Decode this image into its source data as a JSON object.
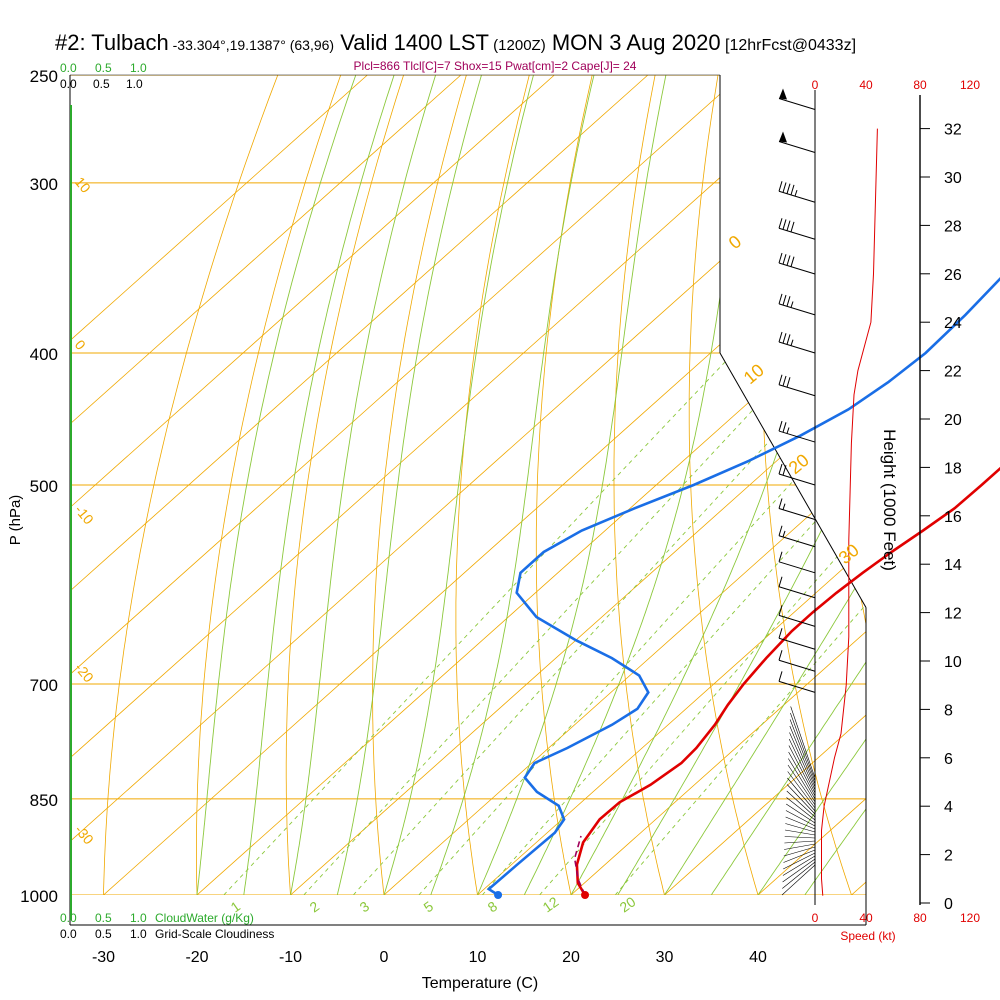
{
  "header": {
    "station": "#2: Tulbach",
    "coords": "-33.304°,19.1387° (63,96)",
    "valid": "Valid 1400 LST",
    "utc": "(1200Z)",
    "date": "MON 3 Aug 2020",
    "fcst": "[12hrFcst@0433z]"
  },
  "indices": "Plcl=866 Tlcl[C]=7 Shox=15 Pwat[cm]=2 Cape[J]= 24",
  "scale_labels": {
    "cloudwater_ticks": [
      "0.0",
      "0.5",
      "1.0"
    ],
    "cloudiness_ticks": [
      "0.0",
      "0.5",
      "1.0"
    ],
    "cloudwater_title": "CloudWater (g/Kg)",
    "cloudiness_title": "Grid-Scale Cloudiness",
    "speed_ticks": [
      "0",
      "40",
      "80",
      "120"
    ],
    "speed_title": "Speed (kt)"
  },
  "chart_data": {
    "type": "line",
    "title": "Skew-T log-P sounding",
    "xlabel": "Temperature (C)",
    "ylabel": "P (hPa)",
    "y2label": "Height (1000 Feet)",
    "x_ticks": [
      -30,
      -20,
      -10,
      0,
      10,
      20,
      30,
      40
    ],
    "p_ticks": [
      250,
      300,
      400,
      500,
      700,
      850,
      1000
    ],
    "height_ticks": [
      0,
      2,
      4,
      6,
      8,
      10,
      12,
      14,
      16,
      18,
      20,
      22,
      24,
      26,
      28,
      30,
      32
    ],
    "mixing_ratio_labels": [
      "1",
      "2",
      "3",
      "5",
      "8",
      "12",
      "20"
    ],
    "isotherm_labels": [
      "10",
      "0",
      "-10",
      "-20",
      "-30"
    ],
    "moist_adiabat_labels": [
      "0",
      "10",
      "20",
      "30"
    ],
    "colors": {
      "temperature": "#e00000",
      "dewpoint": "#1a6ee6",
      "isotherm": "#f0a800",
      "dry_adiabat": "#f0a800",
      "moist_adiabat": "#8cc83c",
      "mixing_ratio": "#8cc83c",
      "parcel": "#a0005a",
      "wind_speed": "#e00000"
    },
    "series": [
      {
        "name": "temperature",
        "points": [
          [
            21.5,
            1000
          ],
          [
            19.3,
            980
          ],
          [
            17,
            950
          ],
          [
            15,
            915
          ],
          [
            14,
            880
          ],
          [
            14.1,
            855
          ],
          [
            15.3,
            830
          ],
          [
            16,
            800
          ],
          [
            15.8,
            780
          ],
          [
            15,
            750
          ],
          [
            14,
            725
          ],
          [
            13.2,
            700
          ],
          [
            12.5,
            670
          ],
          [
            12,
            640
          ],
          [
            12,
            620
          ],
          [
            12.2,
            600
          ],
          [
            12.6,
            580
          ],
          [
            13.2,
            560
          ],
          [
            14,
            540
          ],
          [
            14.7,
            520
          ],
          [
            14.8,
            500
          ],
          [
            14.8,
            485
          ],
          [
            15,
            470
          ],
          [
            14.6,
            455
          ],
          [
            13.6,
            430
          ],
          [
            12,
            400
          ],
          [
            10.5,
            375
          ],
          [
            9,
            350
          ],
          [
            7.5,
            330
          ],
          [
            6.5,
            315
          ],
          [
            5.5,
            300
          ],
          [
            4.5,
            290
          ],
          [
            3.3,
            280
          ],
          [
            2.5,
            270
          ]
        ]
      },
      {
        "name": "dewpoint",
        "points": [
          [
            12.2,
            1000
          ],
          [
            10.5,
            990
          ],
          [
            10.6,
            950
          ],
          [
            10.8,
            900
          ],
          [
            10.2,
            880
          ],
          [
            8,
            860
          ],
          [
            4,
            840
          ],
          [
            1,
            820
          ],
          [
            0.3,
            800
          ],
          [
            2,
            780
          ],
          [
            4,
            750
          ],
          [
            4.8,
            730
          ],
          [
            4,
            710
          ],
          [
            1,
            690
          ],
          [
            -4,
            670
          ],
          [
            -10,
            650
          ],
          [
            -17,
            625
          ],
          [
            -22,
            600
          ],
          [
            -24,
            580
          ],
          [
            -24,
            560
          ],
          [
            -22.5,
            540
          ],
          [
            -19.5,
            520
          ],
          [
            -16,
            500
          ],
          [
            -13,
            480
          ],
          [
            -10.5,
            460
          ],
          [
            -8.5,
            440
          ],
          [
            -7.5,
            420
          ],
          [
            -7,
            400
          ],
          [
            -7.3,
            375
          ],
          [
            -8,
            350
          ],
          [
            -8.7,
            325
          ],
          [
            -9.5,
            300
          ],
          [
            -9.6,
            285
          ],
          [
            -9.5,
            270
          ]
        ]
      },
      {
        "name": "parcel",
        "points": [
          [
            21.5,
            1000
          ],
          [
            19,
            975
          ],
          [
            16,
            940
          ],
          [
            14,
            905
          ]
        ]
      }
    ],
    "wind_speed_kt": [
      [
        6,
        0.3
      ],
      [
        5,
        1
      ],
      [
        5,
        3
      ],
      [
        7,
        4
      ],
      [
        15,
        6
      ],
      [
        20,
        7
      ],
      [
        24,
        9
      ],
      [
        26,
        11
      ],
      [
        26,
        13
      ],
      [
        26,
        15
      ],
      [
        27,
        17
      ],
      [
        28,
        19
      ],
      [
        30,
        21
      ],
      [
        33,
        22
      ],
      [
        38,
        23
      ],
      [
        43,
        24
      ],
      [
        45,
        26
      ],
      [
        46,
        28
      ],
      [
        47,
        30
      ],
      [
        48,
        32
      ]
    ],
    "wind_barbs": [
      {
        "p": 265,
        "spd": 50
      },
      {
        "p": 285,
        "spd": 50
      },
      {
        "p": 310,
        "spd": 45
      },
      {
        "p": 330,
        "spd": 40
      },
      {
        "p": 350,
        "spd": 40
      },
      {
        "p": 375,
        "spd": 35
      },
      {
        "p": 400,
        "spd": 35
      },
      {
        "p": 430,
        "spd": 30
      },
      {
        "p": 465,
        "spd": 25
      },
      {
        "p": 500,
        "spd": 20
      },
      {
        "p": 530,
        "spd": 15
      },
      {
        "p": 555,
        "spd": 15
      },
      {
        "p": 580,
        "spd": 10
      },
      {
        "p": 605,
        "spd": 10
      },
      {
        "p": 635,
        "spd": 10
      },
      {
        "p": 660,
        "spd": 10
      },
      {
        "p": 685,
        "spd": 10
      },
      {
        "p": 710,
        "spd": 10
      }
    ]
  }
}
